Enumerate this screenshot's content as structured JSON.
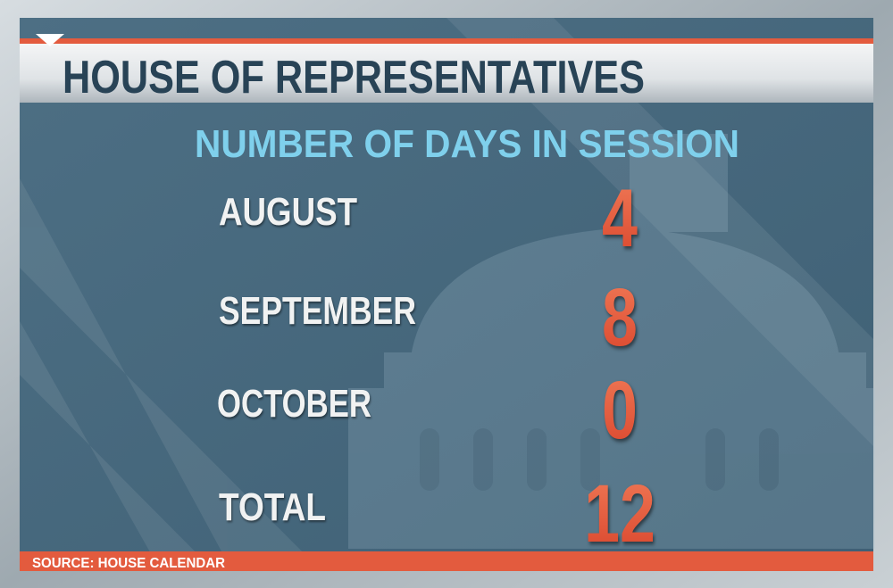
{
  "header": {
    "title": "HOUSE OF REPRESENTATIVES"
  },
  "subtitle": "NUMBER OF DAYS IN SESSION",
  "rows": [
    {
      "label": "AUGUST",
      "value": 4
    },
    {
      "label": "SEPTEMBER",
      "value": 8
    },
    {
      "label": "OCTOBER",
      "value": 0
    },
    {
      "label": "TOTAL",
      "value": 12
    }
  ],
  "source": "SOURCE: HOUSE CALENDAR"
}
